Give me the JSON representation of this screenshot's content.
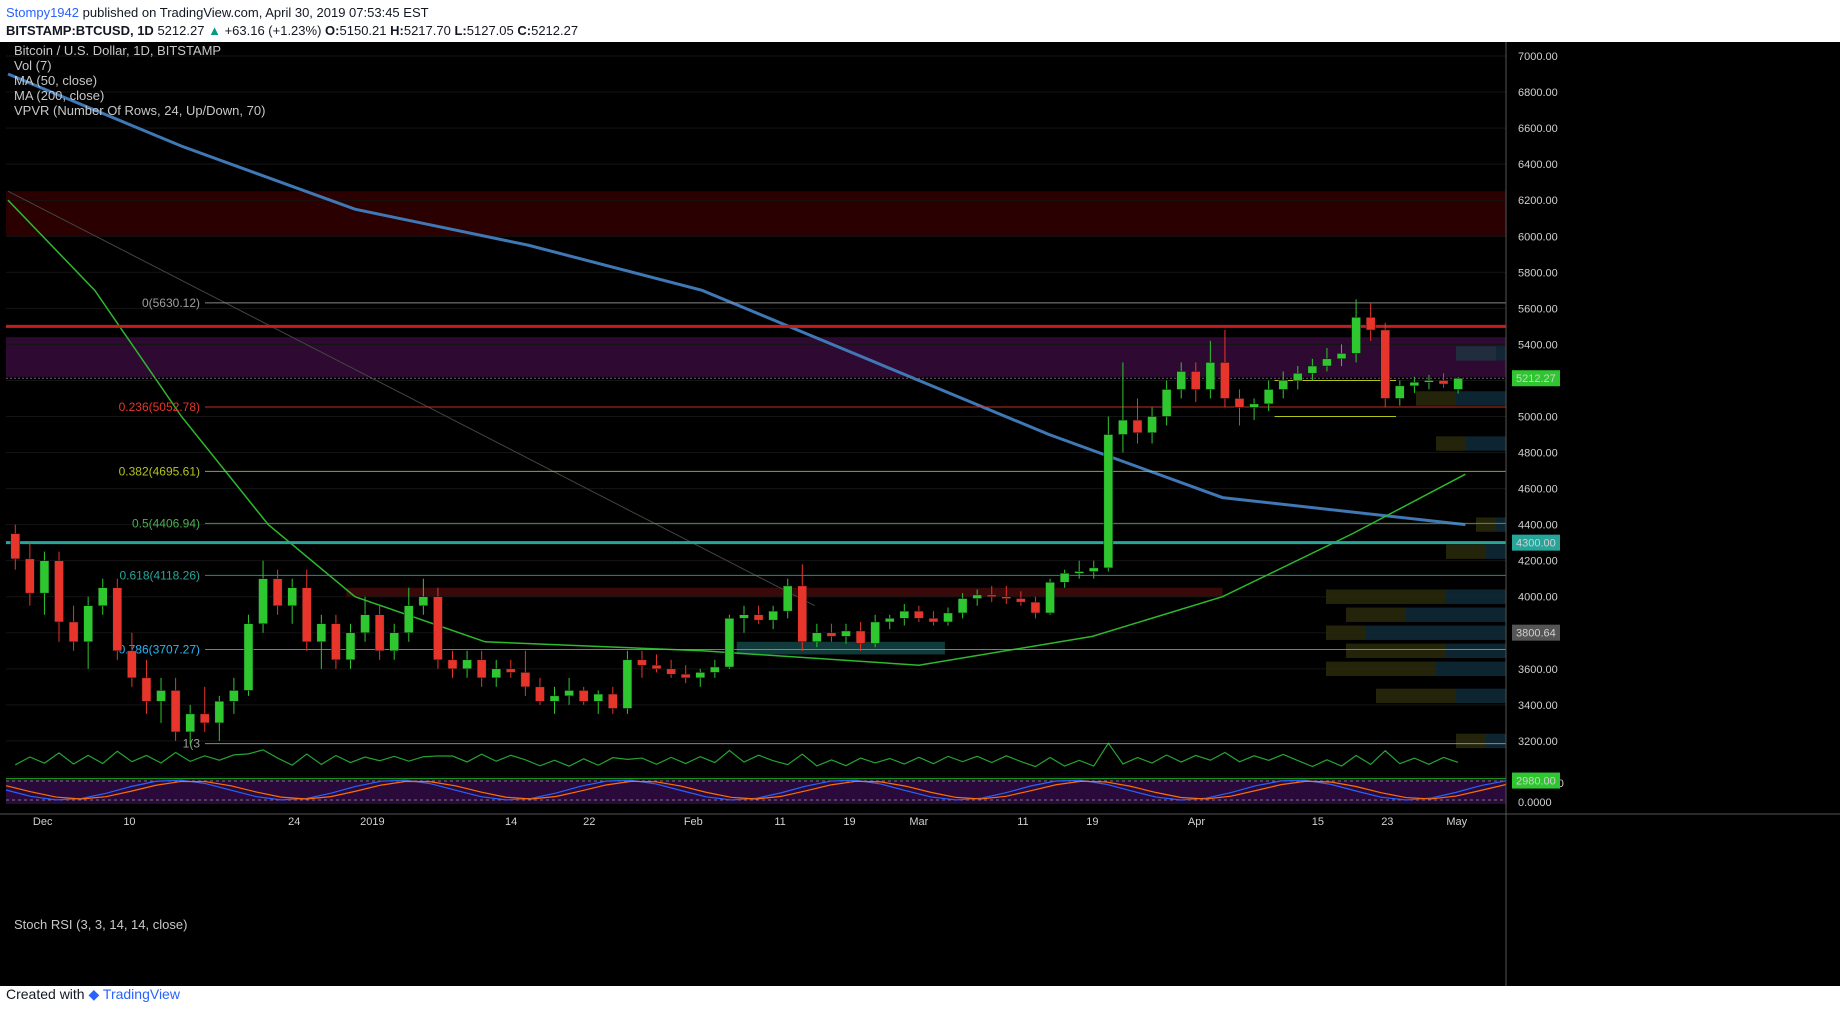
{
  "header": {
    "author": "Stompy1942",
    "published": "published on TradingView.com, April 30, 2019 07:53:45 EST",
    "symbol": "BITSTAMP:BTCUSD, 1D",
    "last": "5212.27",
    "change": "+63.16 (+1.23%)",
    "o_label": "O:",
    "o": "5150.21",
    "h_label": "H:",
    "h": "5217.70",
    "l_label": "L:",
    "l": "5127.05",
    "c_label": "C:",
    "c": "5212.27"
  },
  "legend": {
    "line1": "Bitcoin / U.S. Dollar, 1D, BITSTAMP",
    "line2": "Vol (7)",
    "line3": "MA (50, close)",
    "line4": "MA (200, close)",
    "line5": "VPVR (Number Of Rows, 24, Up/Down, 70)"
  },
  "stoch_label": "Stoch RSI (3, 3, 14, 14, close)",
  "footer": {
    "created_with": "Created with",
    "brand": "TradingView"
  },
  "colors": {
    "up": "#2fc72f",
    "down": "#e8352c",
    "background": "#000000",
    "ma200": "#3f78b4",
    "ma50": "#2eb82e"
  },
  "chart_data": {
    "type": "candlestick",
    "title": "Bitcoin / U.S. Dollar, 1D, BITSTAMP",
    "y_ticks": [
      "7000.00",
      "6800.00",
      "6600.00",
      "6400.00",
      "6200.00",
      "6000.00",
      "5800.00",
      "5600.00",
      "5400.00",
      "5200.00",
      "5000.00",
      "4800.00",
      "4600.00",
      "4400.00",
      "4200.00",
      "4000.00",
      "3800.00",
      "3600.00",
      "3400.00",
      "3200.00",
      "3000.00"
    ],
    "ylim": [
      2850,
      7050
    ],
    "x_ticks": [
      "Dec",
      "10",
      "24",
      "2019",
      "14",
      "22",
      "Feb",
      "11",
      "19",
      "Mar",
      "11",
      "19",
      "Apr",
      "15",
      "23",
      "May"
    ],
    "x_tick_days": [
      4,
      14,
      33,
      42,
      58,
      67,
      79,
      89,
      97,
      105,
      117,
      125,
      137,
      151,
      159,
      167
    ],
    "price_labels": [
      {
        "text": "5212.27",
        "value": 5212.27,
        "color": "#2fc72f"
      },
      {
        "text": "4300.00",
        "value": 4300,
        "color": "#26a69a"
      },
      {
        "text": "3800.64",
        "value": 3800.64,
        "color": "#555555"
      },
      {
        "text": "2980.00",
        "value": 2980,
        "color": "#2fc72f"
      }
    ],
    "fib_levels": [
      {
        "label": "0(5630.12)",
        "value": 5630.12,
        "color": "#9e9e9e"
      },
      {
        "label": "0.236(5052.78)",
        "value": 5052.78,
        "color": "#e8352c"
      },
      {
        "label": "0.382(4695.61)",
        "value": 4695.61,
        "color": "#b5c21a"
      },
      {
        "label": "0.5(4406.94)",
        "value": 4406.94,
        "color": "#4caf50"
      },
      {
        "label": "0.618(4118.26)",
        "value": 4118.26,
        "color": "#26a69a"
      },
      {
        "label": "0.786(3707.27)",
        "value": 3707.27,
        "color": "#29b6f6"
      },
      {
        "label": "1(3",
        "value": 3185,
        "color": "#9e9e9e"
      }
    ],
    "candles": [
      {
        "o": 4350,
        "h": 4400,
        "l": 4150,
        "c": 4210
      },
      {
        "o": 4210,
        "h": 4300,
        "l": 3950,
        "c": 4020
      },
      {
        "o": 4020,
        "h": 4250,
        "l": 3900,
        "c": 4200
      },
      {
        "o": 4200,
        "h": 4250,
        "l": 3750,
        "c": 3860
      },
      {
        "o": 3860,
        "h": 3950,
        "l": 3700,
        "c": 3750
      },
      {
        "o": 3750,
        "h": 4000,
        "l": 3600,
        "c": 3950
      },
      {
        "o": 3950,
        "h": 4100,
        "l": 3900,
        "c": 4050
      },
      {
        "o": 4050,
        "h": 4100,
        "l": 3650,
        "c": 3700
      },
      {
        "o": 3700,
        "h": 3800,
        "l": 3500,
        "c": 3550
      },
      {
        "o": 3550,
        "h": 3650,
        "l": 3350,
        "c": 3420
      },
      {
        "o": 3420,
        "h": 3550,
        "l": 3300,
        "c": 3480
      },
      {
        "o": 3480,
        "h": 3550,
        "l": 3200,
        "c": 3250
      },
      {
        "o": 3250,
        "h": 3400,
        "l": 3180,
        "c": 3350
      },
      {
        "o": 3350,
        "h": 3500,
        "l": 3250,
        "c": 3300
      },
      {
        "o": 3300,
        "h": 3450,
        "l": 3200,
        "c": 3420
      },
      {
        "o": 3420,
        "h": 3550,
        "l": 3350,
        "c": 3480
      },
      {
        "o": 3480,
        "h": 3900,
        "l": 3450,
        "c": 3850
      },
      {
        "o": 3850,
        "h": 4200,
        "l": 3800,
        "c": 4100
      },
      {
        "o": 4100,
        "h": 4150,
        "l": 3900,
        "c": 3950
      },
      {
        "o": 3950,
        "h": 4100,
        "l": 3850,
        "c": 4050
      },
      {
        "o": 4050,
        "h": 4150,
        "l": 3700,
        "c": 3750
      },
      {
        "o": 3750,
        "h": 3900,
        "l": 3600,
        "c": 3850
      },
      {
        "o": 3850,
        "h": 3900,
        "l": 3600,
        "c": 3650
      },
      {
        "o": 3650,
        "h": 3850,
        "l": 3600,
        "c": 3800
      },
      {
        "o": 3800,
        "h": 4000,
        "l": 3750,
        "c": 3900
      },
      {
        "o": 3900,
        "h": 3950,
        "l": 3650,
        "c": 3700
      },
      {
        "o": 3700,
        "h": 3850,
        "l": 3650,
        "c": 3800
      },
      {
        "o": 3800,
        "h": 4050,
        "l": 3750,
        "c": 3950
      },
      {
        "o": 3950,
        "h": 4100,
        "l": 3900,
        "c": 4000
      },
      {
        "o": 4000,
        "h": 4050,
        "l": 3600,
        "c": 3650
      },
      {
        "o": 3650,
        "h": 3700,
        "l": 3550,
        "c": 3600
      },
      {
        "o": 3600,
        "h": 3700,
        "l": 3550,
        "c": 3650
      },
      {
        "o": 3650,
        "h": 3700,
        "l": 3500,
        "c": 3550
      },
      {
        "o": 3550,
        "h": 3650,
        "l": 3500,
        "c": 3600
      },
      {
        "o": 3600,
        "h": 3650,
        "l": 3550,
        "c": 3580
      },
      {
        "o": 3580,
        "h": 3700,
        "l": 3450,
        "c": 3500
      },
      {
        "o": 3500,
        "h": 3550,
        "l": 3400,
        "c": 3420
      },
      {
        "o": 3420,
        "h": 3500,
        "l": 3350,
        "c": 3450
      },
      {
        "o": 3450,
        "h": 3550,
        "l": 3400,
        "c": 3480
      },
      {
        "o": 3480,
        "h": 3500,
        "l": 3400,
        "c": 3420
      },
      {
        "o": 3420,
        "h": 3480,
        "l": 3350,
        "c": 3460
      },
      {
        "o": 3460,
        "h": 3500,
        "l": 3350,
        "c": 3380
      },
      {
        "o": 3380,
        "h": 3700,
        "l": 3350,
        "c": 3650
      },
      {
        "o": 3650,
        "h": 3700,
        "l": 3550,
        "c": 3620
      },
      {
        "o": 3620,
        "h": 3680,
        "l": 3580,
        "c": 3600
      },
      {
        "o": 3600,
        "h": 3650,
        "l": 3550,
        "c": 3570
      },
      {
        "o": 3570,
        "h": 3620,
        "l": 3520,
        "c": 3550
      },
      {
        "o": 3550,
        "h": 3600,
        "l": 3500,
        "c": 3580
      },
      {
        "o": 3580,
        "h": 3650,
        "l": 3550,
        "c": 3610
      },
      {
        "o": 3610,
        "h": 3900,
        "l": 3600,
        "c": 3880
      },
      {
        "o": 3880,
        "h": 3950,
        "l": 3800,
        "c": 3900
      },
      {
        "o": 3900,
        "h": 3950,
        "l": 3850,
        "c": 3870
      },
      {
        "o": 3870,
        "h": 3950,
        "l": 3820,
        "c": 3920
      },
      {
        "o": 3920,
        "h": 4100,
        "l": 3880,
        "c": 4060
      },
      {
        "o": 4060,
        "h": 4180,
        "l": 3700,
        "c": 3750
      },
      {
        "o": 3750,
        "h": 3850,
        "l": 3720,
        "c": 3800
      },
      {
        "o": 3800,
        "h": 3850,
        "l": 3750,
        "c": 3780
      },
      {
        "o": 3780,
        "h": 3850,
        "l": 3740,
        "c": 3810
      },
      {
        "o": 3810,
        "h": 3860,
        "l": 3700,
        "c": 3740
      },
      {
        "o": 3740,
        "h": 3900,
        "l": 3720,
        "c": 3860
      },
      {
        "o": 3860,
        "h": 3900,
        "l": 3820,
        "c": 3880
      },
      {
        "o": 3880,
        "h": 3960,
        "l": 3840,
        "c": 3920
      },
      {
        "o": 3920,
        "h": 3950,
        "l": 3860,
        "c": 3880
      },
      {
        "o": 3880,
        "h": 3920,
        "l": 3840,
        "c": 3860
      },
      {
        "o": 3860,
        "h": 3940,
        "l": 3840,
        "c": 3910
      },
      {
        "o": 3910,
        "h": 4020,
        "l": 3880,
        "c": 3990
      },
      {
        "o": 3990,
        "h": 4040,
        "l": 3950,
        "c": 4010
      },
      {
        "o": 4010,
        "h": 4060,
        "l": 3970,
        "c": 4000
      },
      {
        "o": 4000,
        "h": 4060,
        "l": 3960,
        "c": 3990
      },
      {
        "o": 3990,
        "h": 4030,
        "l": 3950,
        "c": 3970
      },
      {
        "o": 3970,
        "h": 4000,
        "l": 3880,
        "c": 3910
      },
      {
        "o": 3910,
        "h": 4100,
        "l": 3900,
        "c": 4080
      },
      {
        "o": 4080,
        "h": 4150,
        "l": 4050,
        "c": 4130
      },
      {
        "o": 4130,
        "h": 4200,
        "l": 4100,
        "c": 4140
      },
      {
        "o": 4140,
        "h": 4200,
        "l": 4100,
        "c": 4160
      },
      {
        "o": 4160,
        "h": 5000,
        "l": 4140,
        "c": 4900
      },
      {
        "o": 4900,
        "h": 5300,
        "l": 4800,
        "c": 4980
      },
      {
        "o": 4980,
        "h": 5100,
        "l": 4850,
        "c": 4910
      },
      {
        "o": 4910,
        "h": 5050,
        "l": 4850,
        "c": 5000
      },
      {
        "o": 5000,
        "h": 5200,
        "l": 4950,
        "c": 5150
      },
      {
        "o": 5150,
        "h": 5300,
        "l": 5100,
        "c": 5250
      },
      {
        "o": 5250,
        "h": 5300,
        "l": 5080,
        "c": 5150
      },
      {
        "o": 5150,
        "h": 5420,
        "l": 5100,
        "c": 5300
      },
      {
        "o": 5300,
        "h": 5480,
        "l": 5050,
        "c": 5100
      },
      {
        "o": 5100,
        "h": 5150,
        "l": 4950,
        "c": 5050
      },
      {
        "o": 5050,
        "h": 5100,
        "l": 4980,
        "c": 5070
      },
      {
        "o": 5070,
        "h": 5200,
        "l": 5030,
        "c": 5150
      },
      {
        "o": 5150,
        "h": 5250,
        "l": 5100,
        "c": 5200
      },
      {
        "o": 5200,
        "h": 5280,
        "l": 5150,
        "c": 5240
      },
      {
        "o": 5240,
        "h": 5320,
        "l": 5200,
        "c": 5280
      },
      {
        "o": 5280,
        "h": 5380,
        "l": 5250,
        "c": 5320
      },
      {
        "o": 5320,
        "h": 5400,
        "l": 5280,
        "c": 5350
      },
      {
        "o": 5350,
        "h": 5650,
        "l": 5300,
        "c": 5550
      },
      {
        "o": 5550,
        "h": 5630,
        "l": 5420,
        "c": 5480
      },
      {
        "o": 5480,
        "h": 5520,
        "l": 5050,
        "c": 5100
      },
      {
        "o": 5100,
        "h": 5200,
        "l": 5060,
        "c": 5170
      },
      {
        "o": 5170,
        "h": 5220,
        "l": 5130,
        "c": 5190
      },
      {
        "o": 5190,
        "h": 5230,
        "l": 5150,
        "c": 5200
      },
      {
        "o": 5200,
        "h": 5240,
        "l": 5160,
        "c": 5180
      },
      {
        "o": 5150,
        "h": 5218,
        "l": 5127,
        "c": 5212
      }
    ]
  }
}
